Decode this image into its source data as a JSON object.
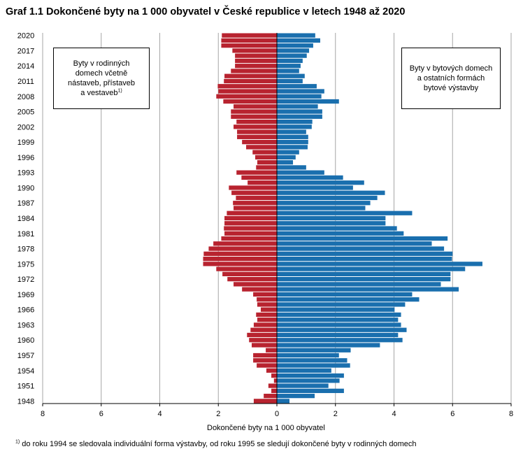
{
  "chart_data": {
    "type": "bar",
    "orientation": "horizontal-butterfly",
    "title": "Graf 1.1 Dokončené byty na 1 000 obyvatel v České republice v letech 1948 až 2020",
    "xlabel": "Dokončené byty na 1 000 obyvatel",
    "ylabel": "",
    "xlim": [
      -8,
      8
    ],
    "x_ticks": [
      -8,
      -6,
      -4,
      -2,
      0,
      2,
      4,
      6,
      8
    ],
    "x_tick_labels": [
      "8",
      "6",
      "4",
      "2",
      "0",
      "2",
      "4",
      "6",
      "8"
    ],
    "grid": "vertical",
    "y_tick_labels": [
      "2020",
      "2017",
      "2014",
      "2011",
      "2008",
      "2005",
      "2002",
      "1999",
      "1996",
      "1993",
      "1990",
      "1987",
      "1984",
      "1981",
      "1978",
      "1975",
      "1972",
      "1969",
      "1966",
      "1963",
      "1960",
      "1957",
      "1954",
      "1951",
      "1948"
    ],
    "categories": [
      1948,
      1949,
      1950,
      1951,
      1952,
      1953,
      1954,
      1955,
      1956,
      1957,
      1958,
      1959,
      1960,
      1961,
      1962,
      1963,
      1964,
      1965,
      1966,
      1967,
      1968,
      1969,
      1970,
      1971,
      1972,
      1973,
      1974,
      1975,
      1976,
      1977,
      1978,
      1979,
      1980,
      1981,
      1982,
      1983,
      1984,
      1985,
      1986,
      1987,
      1988,
      1989,
      1990,
      1991,
      1992,
      1993,
      1994,
      1995,
      1996,
      1997,
      1998,
      1999,
      2000,
      2001,
      2002,
      2003,
      2004,
      2005,
      2006,
      2007,
      2008,
      2009,
      2010,
      2011,
      2012,
      2013,
      2014,
      2015,
      2016,
      2017,
      2018,
      2019,
      2020
    ],
    "series": [
      {
        "name": "Byty v rodinných domech včetně nástaveb, přístaveb a vestaveb",
        "side": "left",
        "color": "#b8232f",
        "values": [
          0.79,
          0.45,
          0.19,
          0.29,
          0.1,
          0.19,
          0.36,
          0.69,
          0.81,
          0.81,
          0.38,
          0.86,
          0.95,
          1.02,
          0.9,
          0.79,
          0.67,
          0.71,
          0.55,
          0.67,
          0.69,
          0.81,
          1.19,
          1.48,
          1.69,
          1.86,
          2.07,
          2.52,
          2.52,
          2.5,
          2.33,
          2.17,
          1.9,
          1.79,
          1.81,
          1.79,
          1.79,
          1.71,
          1.48,
          1.5,
          1.4,
          1.55,
          1.64,
          1.0,
          1.21,
          1.38,
          0.71,
          0.67,
          0.74,
          0.83,
          1.05,
          1.19,
          1.36,
          1.36,
          1.48,
          1.38,
          1.57,
          1.57,
          1.48,
          1.83,
          2.07,
          2.0,
          2.02,
          1.81,
          1.79,
          1.57,
          1.43,
          1.43,
          1.43,
          1.52,
          1.9,
          1.9,
          1.88
        ]
      },
      {
        "name": "Byty v bytových domech a ostatních formách bytové výstavby",
        "side": "right",
        "color": "#1a6fae",
        "values": [
          0.43,
          1.29,
          2.29,
          1.76,
          2.14,
          2.29,
          1.86,
          2.5,
          2.4,
          2.12,
          2.52,
          3.52,
          4.29,
          4.14,
          4.43,
          4.24,
          4.14,
          4.24,
          4.02,
          4.38,
          4.86,
          4.62,
          6.21,
          5.6,
          5.93,
          5.93,
          6.43,
          7.02,
          5.98,
          6.0,
          5.71,
          5.29,
          5.83,
          4.33,
          4.1,
          3.71,
          3.71,
          4.62,
          3.02,
          3.19,
          3.43,
          3.69,
          2.6,
          2.98,
          2.26,
          1.62,
          1.0,
          0.55,
          0.64,
          0.76,
          1.05,
          1.07,
          1.07,
          1.0,
          1.19,
          1.21,
          1.55,
          1.55,
          1.4,
          2.12,
          1.52,
          1.62,
          1.36,
          0.88,
          0.95,
          0.76,
          0.81,
          0.88,
          1.02,
          1.1,
          1.24,
          1.48,
          1.31
        ]
      }
    ],
    "legend": {
      "left": {
        "line1": "Byty v rodinných",
        "line2": "domech včetně",
        "line3": "nástaveb, přístaveb",
        "line4": "a vestaveb",
        "sup": "1)",
        "placement": "top-left"
      },
      "right": {
        "line1": "Byty v bytových domech",
        "line2": "a ostatních formách",
        "line3": "bytové výstavby",
        "placement": "top-right"
      }
    },
    "footnote": {
      "sup": "1)",
      "text": " do roku 1994 se sledovala individuální forma výstavby, od roku 1995 se sledují dokončené byty v rodinných domech"
    }
  }
}
